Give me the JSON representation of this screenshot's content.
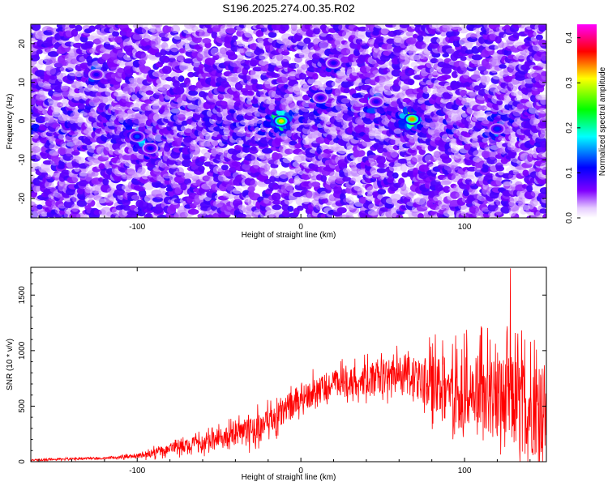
{
  "chart_data": [
    {
      "type": "heatmap",
      "title": "S196.2025.274.00.35.R02",
      "xlabel": "Height of straight line (km)",
      "ylabel": "Frequency (Hz)",
      "xlim": [
        -165,
        150
      ],
      "ylim": [
        -25,
        25
      ],
      "x_ticks": [
        -100,
        0,
        100
      ],
      "x_tick_labels": [
        "-100",
        "0",
        "100"
      ],
      "y_ticks": [
        -20,
        -10,
        0,
        10,
        20
      ],
      "y_tick_labels": [
        "-20",
        "-10",
        "0",
        "10",
        "20"
      ],
      "colorbar": {
        "label": "Normalized spectral amplitude",
        "range": [
          0.0,
          0.43
        ],
        "ticks": [
          0.0,
          0.1,
          0.2,
          0.3,
          0.4
        ],
        "tick_labels": [
          "0.0",
          "0.1",
          "0.2",
          "0.3",
          "0.4"
        ],
        "colormap": [
          "#ffffff",
          "#8000ff",
          "#0000ff",
          "#00ffff",
          "#00ff00",
          "#ffff00",
          "#ff0000",
          "#ff00ff"
        ]
      },
      "background_level": 0.05,
      "hotspots": [
        {
          "x": -12,
          "y": 0,
          "value": 0.32
        },
        {
          "x": 68,
          "y": 0.5,
          "value": 0.34
        },
        {
          "x": -100,
          "y": -4,
          "value": 0.13
        },
        {
          "x": -92,
          "y": -7,
          "value": 0.11
        },
        {
          "x": 120,
          "y": -2,
          "value": 0.12
        },
        {
          "x": 12,
          "y": 6,
          "value": 0.1
        },
        {
          "x": 46,
          "y": 5,
          "value": 0.1
        },
        {
          "x": -125,
          "y": 12,
          "value": 0.1
        },
        {
          "x": 20,
          "y": 15,
          "value": 0.1
        }
      ]
    },
    {
      "type": "line",
      "xlabel": "Height of straight line (km)",
      "ylabel": "SNR (10 * v/v)",
      "xlim": [
        -165,
        150
      ],
      "ylim": [
        0,
        1750
      ],
      "x_ticks": [
        -100,
        0,
        100
      ],
      "x_tick_labels": [
        "-100",
        "0",
        "100"
      ],
      "y_ticks": [
        0,
        500,
        1000,
        1500
      ],
      "y_tick_labels": [
        "0",
        "500",
        "1000",
        "1500"
      ],
      "color": "#ff0000",
      "series": [
        {
          "name": "SNR",
          "x": [
            -165,
            -140,
            -120,
            -100,
            -80,
            -60,
            -40,
            -20,
            0,
            20,
            40,
            60,
            80,
            100,
            120,
            150
          ],
          "values": [
            15,
            25,
            30,
            50,
            110,
            160,
            240,
            330,
            580,
            700,
            740,
            790,
            700,
            620,
            560,
            460
          ]
        }
      ],
      "spread": [
        10,
        12,
        12,
        25,
        70,
        90,
        130,
        170,
        150,
        160,
        170,
        200,
        320,
        420,
        520,
        560
      ],
      "peak": {
        "x": 128,
        "value": 1740
      }
    }
  ]
}
